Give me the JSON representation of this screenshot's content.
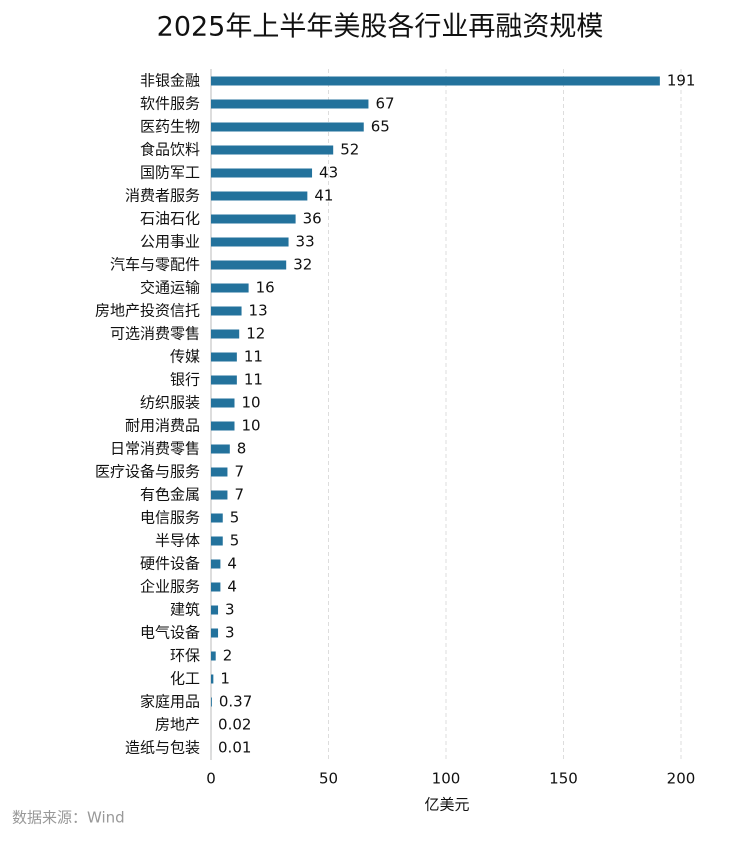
{
  "chart_data": {
    "type": "bar",
    "orientation": "horizontal",
    "title": "2025年上半年美股各行业再融资规模",
    "categories": [
      "非银金融",
      "软件服务",
      "医药生物",
      "食品饮料",
      "国防军工",
      "消费者服务",
      "石油石化",
      "公用事业",
      "汽车与零配件",
      "交通运输",
      "房地产投资信托",
      "可选消费零售",
      "传媒",
      "银行",
      "纺织服装",
      "耐用消费品",
      "日常消费零售",
      "医疗设备与服务",
      "有色金属",
      "电信服务",
      "半导体",
      "硬件设备",
      "企业服务",
      "建筑",
      "电气设备",
      "环保",
      "化工",
      "家庭用品",
      "房地产",
      "造纸与包装"
    ],
    "values": [
      191,
      67,
      65,
      52,
      43,
      41,
      36,
      33,
      32,
      16,
      13,
      12,
      11,
      11,
      10,
      10,
      8,
      7,
      7,
      5,
      5,
      4,
      4,
      3,
      3,
      2,
      1,
      0.37,
      0.02,
      0.01
    ],
    "color": "#23729c",
    "xlim": [
      0,
      200
    ],
    "xticks": [
      0,
      50,
      100,
      150,
      200
    ],
    "grid": true,
    "xlabel": "亿美元",
    "source": "数据来源：Wind"
  }
}
